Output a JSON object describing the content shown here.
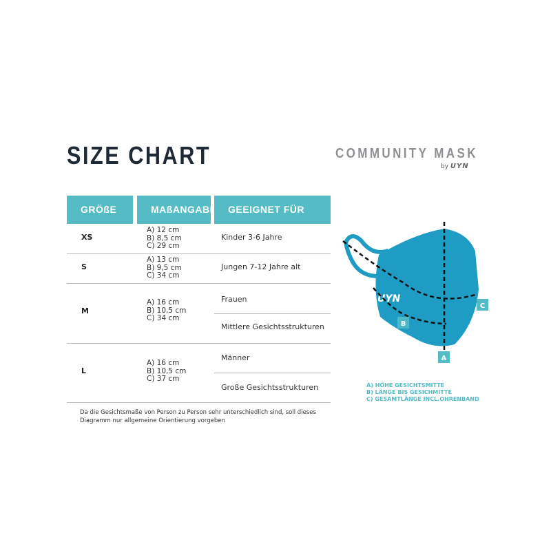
{
  "title": "SIZE CHART",
  "brand": {
    "name": "COMMUNITY MASK",
    "by": "by",
    "logo": "UYN"
  },
  "table": {
    "headers": [
      "GRÖßE",
      "MAßANGABE",
      "GEEIGNET FÜR"
    ],
    "rows": [
      {
        "size": "XS",
        "measures": "A) 12 cm\nB) 8,5 cm\nC) 29 cm",
        "suitable": [
          "Kinder 3-6 Jahre"
        ]
      },
      {
        "size": "S",
        "measures": "A) 13 cm\nB) 9,5 cm\nC) 34 cm",
        "suitable": [
          "Jungen 7-12 Jahre alt"
        ]
      },
      {
        "size": "M",
        "measures": "A) 16 cm\nB) 10,5 cm\nC) 34 cm",
        "suitable": [
          "Frauen",
          "Mittlere Gesichtsstrukturen"
        ]
      },
      {
        "size": "L",
        "measures": "A) 16 cm\nB) 10,5 cm\nC) 37 cm",
        "suitable": [
          "Männer",
          "Große Gesichtsstrukturen"
        ]
      }
    ]
  },
  "note": "Da die Gesichtsmaße von Person zu Person sehr unterschiedlich sind, soll dieses Diagramm nur allgemeine Orientierung vorgeben",
  "diagram": {
    "labels": [
      "A",
      "B",
      "C"
    ],
    "mask_logo": "UYN",
    "mask_color": "#1f9cc4",
    "accent": "#55bcc6"
  },
  "legend": [
    "A) HÖHE GESICHTSMITTE",
    "B) LÄNGE BIS GESICHMITTE",
    "C) GESAMTLÄNGE INCL.OHRENBAND"
  ]
}
